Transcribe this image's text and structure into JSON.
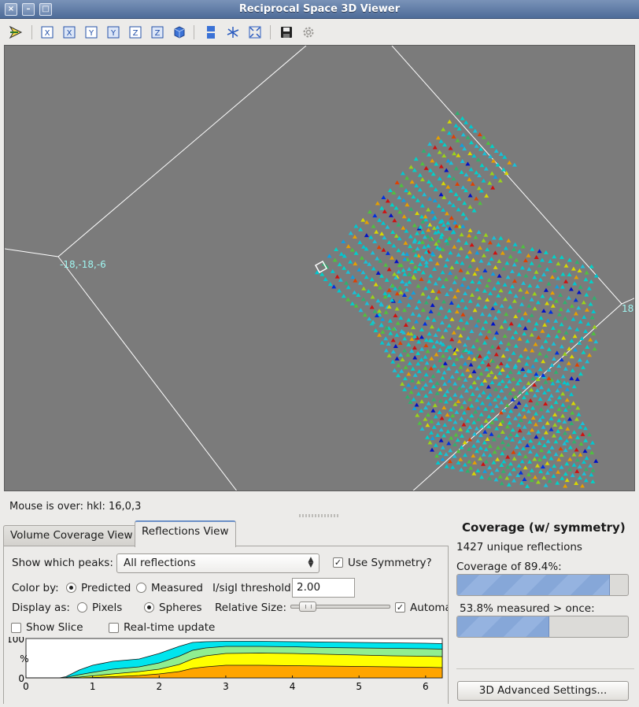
{
  "window": {
    "title": "Reciprocal Space 3D Viewer"
  },
  "toolbar": {
    "buttons": [
      {
        "name": "orient-icon"
      },
      {
        "name": "view-x-icon",
        "label": "X"
      },
      {
        "name": "view-x-rev-icon",
        "label": "X"
      },
      {
        "name": "view-y-icon",
        "label": "Y"
      },
      {
        "name": "view-y-rev-icon",
        "label": "Y"
      },
      {
        "name": "view-z-icon",
        "label": "Z"
      },
      {
        "name": "view-z-rev-icon",
        "label": "Z"
      },
      {
        "name": "cube-icon"
      },
      {
        "name": "layout-icon"
      },
      {
        "name": "axes-icon"
      },
      {
        "name": "fit-icon"
      },
      {
        "name": "save-icon"
      },
      {
        "name": "settings-icon"
      }
    ]
  },
  "viewport": {
    "corner_label_left": "-18,-18,-6",
    "corner_label_right": "18",
    "background": "#7b7b7b"
  },
  "status": {
    "mouse_over": "Mouse is over: hkl: 16,0,3"
  },
  "tabs": [
    {
      "label": "Volume Coverage View",
      "active": false
    },
    {
      "label": "Reflections View",
      "active": true
    }
  ],
  "reflections": {
    "show_peaks_label": "Show which peaks:",
    "show_peaks_value": "All reflections",
    "use_symmetry_label": "Use Symmetry?",
    "use_symmetry_checked": true,
    "color_by_label": "Color by:",
    "color_predicted": "Predicted",
    "color_measured": "Measured",
    "color_by_selected": "Predicted",
    "threshold_label": "I/sigI threshold",
    "threshold_value": "2.00",
    "display_as_label": "Display as:",
    "display_pixels": "Pixels",
    "display_spheres": "Spheres",
    "display_selected": "Spheres",
    "relative_size_label": "Relative Size:",
    "relative_size_level": 0.1,
    "automatic_label": "Automa",
    "automatic_checked": true,
    "show_slice_label": "Show Slice",
    "show_slice_checked": false,
    "realtime_label": "Real-time update",
    "realtime_checked": false
  },
  "chart_data": {
    "type": "area",
    "ylabel": "%",
    "ylim": [
      0,
      100
    ],
    "xlim": [
      0,
      6.25
    ],
    "x_ticks": [
      "0",
      "1",
      "2",
      "3",
      "4",
      "5",
      "6"
    ],
    "y_ticks": [
      "100",
      "0"
    ],
    "x": [
      0,
      0.5,
      0.6,
      0.8,
      1.0,
      1.3,
      1.7,
      2.0,
      2.3,
      2.5,
      2.7,
      3.0,
      3.5,
      4.0,
      4.5,
      5.0,
      5.5,
      6.0,
      6.25
    ],
    "series": [
      {
        "color": "#00e5ee",
        "values": [
          0,
          0,
          3,
          20,
          32,
          42,
          48,
          62,
          80,
          90,
          92,
          93,
          93,
          92,
          91,
          90,
          89,
          88,
          87
        ]
      },
      {
        "color": "#90ee90",
        "values": [
          0,
          0,
          1,
          8,
          14,
          22,
          28,
          38,
          55,
          70,
          76,
          80,
          80,
          79,
          77,
          76,
          75,
          74,
          73
        ]
      },
      {
        "color": "#ffff00",
        "values": [
          0,
          0,
          0,
          2,
          5,
          10,
          16,
          22,
          34,
          48,
          56,
          62,
          63,
          62,
          60,
          58,
          56,
          55,
          54
        ]
      },
      {
        "color": "#ffa500",
        "values": [
          0,
          0,
          0,
          0,
          1,
          3,
          6,
          10,
          16,
          24,
          28,
          32,
          32,
          31,
          30,
          29,
          28,
          27,
          26
        ]
      }
    ]
  },
  "coverage": {
    "title": "Coverage (w/ symmetry)",
    "unique_text": "1427 unique reflections",
    "coverage_text": "Coverage of  89.4%:",
    "coverage_value": 0.894,
    "measured_text": "53.8% measured > once:",
    "measured_value": 0.538
  },
  "advanced_button": "3D Advanced Settings..."
}
